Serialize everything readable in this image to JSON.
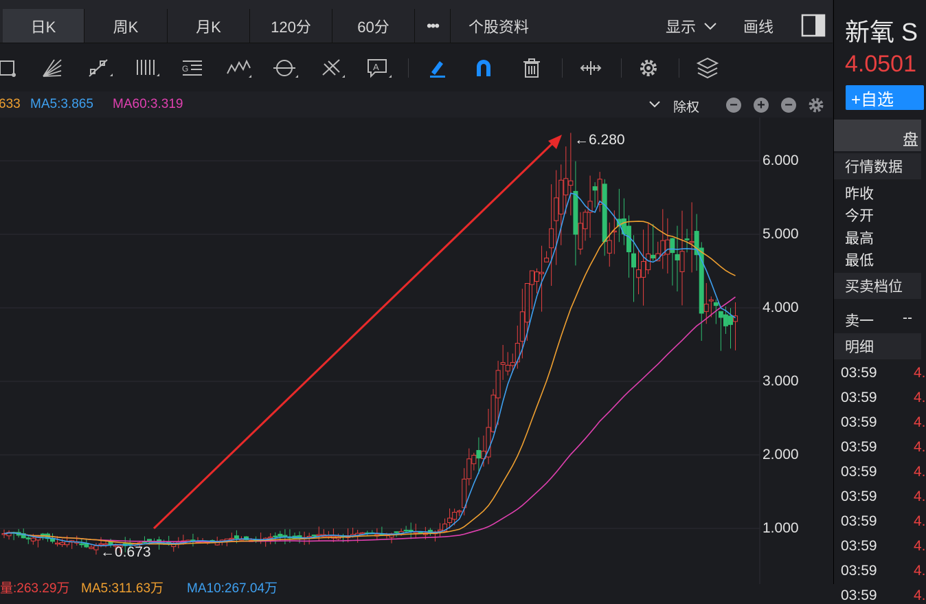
{
  "tabs": [
    "日K",
    "周K",
    "月K",
    "120分",
    "60分",
    "•••",
    "个股资料"
  ],
  "active_tab": 0,
  "header_right": {
    "display_label": "显示",
    "draw_label": "画线"
  },
  "ma": {
    "ma_partial": "633",
    "ma5": "MA5:3.865",
    "ma60": "MA60:3.319",
    "adjust_label": "除权"
  },
  "chart_data": {
    "type": "candlestick",
    "y_ticks": [
      "6.000",
      "5.000",
      "4.000",
      "3.000",
      "2.000",
      "1.000"
    ],
    "ylim": [
      0.5,
      6.8
    ],
    "high_annotation": "←6.280",
    "low_annotation": "←0.673",
    "high_value": 6.28,
    "low_value": 0.673,
    "colors": {
      "up": "#e84040",
      "down": "#2fbf71",
      "ma5": "#3ea0f0",
      "ma_mid": "#f0a030",
      "ma60": "#e040b0"
    }
  },
  "bottom_line": {
    "part1": "量:263.29万",
    "part2": "MA5:311.63万",
    "part3": "MA10:267.04万"
  },
  "panel": {
    "name": "新氧 S",
    "price": "4.0501",
    "add_label": "+自选",
    "tab_label": "盘",
    "quote_header": "行情数据",
    "quote_items": [
      "昨收",
      "今开",
      "最高",
      "最低"
    ],
    "orderbook_header": "买卖档位",
    "sell1_label": "卖一",
    "sell1_value": "--",
    "detail_header": "明细",
    "trades": [
      {
        "time": "03:59",
        "price": "4."
      },
      {
        "time": "03:59",
        "price": "4."
      },
      {
        "time": "03:59",
        "price": "4."
      },
      {
        "time": "03:59",
        "price": "4."
      },
      {
        "time": "03:59",
        "price": "4."
      },
      {
        "time": "03:59",
        "price": "4."
      },
      {
        "time": "03:59",
        "price": "4."
      },
      {
        "time": "03:59",
        "price": "4."
      },
      {
        "time": "03:59",
        "price": "4."
      },
      {
        "time": "03:59",
        "price": "4."
      }
    ]
  }
}
